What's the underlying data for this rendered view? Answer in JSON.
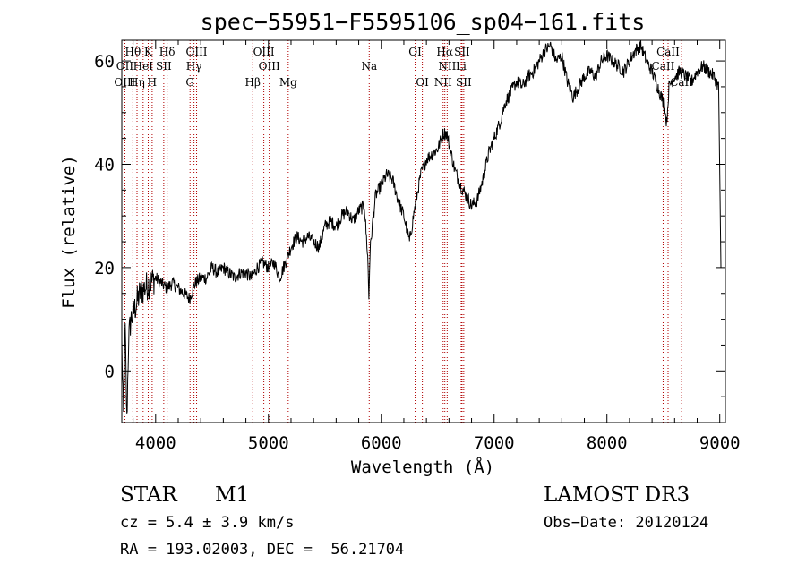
{
  "chart_data": {
    "type": "line",
    "title": "spec−55951−F5595106_sp04−161.fits",
    "xlabel": "Wavelength (Å)",
    "ylabel": "Flux (relative)",
    "xlim": [
      3700,
      9050
    ],
    "ylim": [
      -10,
      64
    ],
    "xticks": [
      4000,
      5000,
      6000,
      7000,
      8000,
      9000
    ],
    "yticks": [
      0,
      20,
      40,
      60
    ],
    "series": [
      {
        "name": "flux",
        "x": [
          3700,
          3715,
          3730,
          3745,
          3760,
          3780,
          3800,
          3830,
          3860,
          3900,
          3950,
          4000,
          4050,
          4100,
          4150,
          4200,
          4250,
          4300,
          4350,
          4400,
          4450,
          4500,
          4550,
          4600,
          4650,
          4700,
          4750,
          4800,
          4850,
          4900,
          4950,
          5000,
          5050,
          5100,
          5150,
          5200,
          5250,
          5300,
          5350,
          5400,
          5450,
          5500,
          5550,
          5600,
          5650,
          5700,
          5750,
          5800,
          5850,
          5880,
          5890,
          5900,
          5920,
          5950,
          6000,
          6050,
          6100,
          6150,
          6200,
          6250,
          6300,
          6350,
          6400,
          6450,
          6500,
          6550,
          6580,
          6600,
          6650,
          6700,
          6750,
          6800,
          6850,
          6900,
          6950,
          7000,
          7050,
          7100,
          7150,
          7200,
          7250,
          7300,
          7350,
          7400,
          7450,
          7500,
          7550,
          7600,
          7650,
          7700,
          7750,
          7800,
          7850,
          7900,
          7950,
          8000,
          8050,
          8100,
          8150,
          8200,
          8250,
          8300,
          8350,
          8400,
          8450,
          8500,
          8530,
          8550,
          8600,
          8650,
          8700,
          8750,
          8800,
          8850,
          8900,
          8950,
          8990,
          9000,
          9010
        ],
        "values": [
          5,
          -9,
          8,
          -10,
          6,
          10,
          11,
          13,
          15,
          16,
          17,
          18,
          17,
          16,
          17,
          16,
          15,
          14,
          17,
          18,
          18,
          20,
          19,
          20,
          19,
          18,
          19,
          19,
          18,
          20,
          21,
          20,
          21,
          18,
          21,
          24,
          26,
          25,
          26,
          25,
          24,
          28,
          29,
          28,
          30,
          31,
          29,
          31,
          32,
          22,
          14,
          23,
          28,
          34,
          36,
          38,
          37,
          33,
          30,
          25,
          32,
          38,
          41,
          42,
          43,
          46,
          46,
          44,
          39,
          36,
          34,
          32,
          33,
          37,
          42,
          45,
          48,
          52,
          54,
          56,
          55,
          57,
          58,
          60,
          62,
          63,
          60,
          61,
          56,
          53,
          55,
          57,
          58,
          57,
          60,
          61,
          60,
          59,
          58,
          60,
          62,
          63,
          60,
          58,
          55,
          52,
          48,
          55,
          57,
          58,
          57,
          56,
          58,
          59,
          58,
          57,
          55,
          38,
          20
        ]
      }
    ],
    "spectral_lines": [
      {
        "name": "Hθ",
        "wavelength": 3798,
        "row": 0
      },
      {
        "name": "K",
        "wavelength": 3934,
        "row": 0
      },
      {
        "name": "Hδ",
        "wavelength": 4102,
        "row": 0
      },
      {
        "name": "OIII",
        "wavelength": 4363,
        "row": 0
      },
      {
        "name": "OIII",
        "wavelength": 4959,
        "row": 0
      },
      {
        "name": "OI",
        "wavelength": 6300,
        "row": 0
      },
      {
        "name": "Hα",
        "wavelength": 6563,
        "row": 0
      },
      {
        "name": "SII",
        "wavelength": 6716,
        "row": 0
      },
      {
        "name": "CaII",
        "wavelength": 8542,
        "row": 0
      },
      {
        "name": "OII",
        "wavelength": 3727,
        "row": 1
      },
      {
        "name": "HeI",
        "wavelength": 3889,
        "row": 1
      },
      {
        "name": "SII",
        "wavelength": 4072,
        "row": 1
      },
      {
        "name": "Hγ",
        "wavelength": 4340,
        "row": 1
      },
      {
        "name": "OIII",
        "wavelength": 5007,
        "row": 1
      },
      {
        "name": "Na",
        "wavelength": 5893,
        "row": 1
      },
      {
        "name": "NII",
        "wavelength": 6584,
        "row": 1
      },
      {
        "name": "Li",
        "wavelength": 6708,
        "row": 1
      },
      {
        "name": "CaII",
        "wavelength": 8498,
        "row": 1
      },
      {
        "name": "OIII",
        "wavelength": 3727,
        "row": 2
      },
      {
        "name": "Hη",
        "wavelength": 3835,
        "row": 2
      },
      {
        "name": "H",
        "wavelength": 3969,
        "row": 2
      },
      {
        "name": "G",
        "wavelength": 4305,
        "row": 2
      },
      {
        "name": "Hβ",
        "wavelength": 4861,
        "row": 2
      },
      {
        "name": "Mg",
        "wavelength": 5175,
        "row": 2
      },
      {
        "name": "OI",
        "wavelength": 6364,
        "row": 2
      },
      {
        "name": "NII",
        "wavelength": 6548,
        "row": 2
      },
      {
        "name": "SII",
        "wavelength": 6731,
        "row": 2
      },
      {
        "name": "CaII",
        "wavelength": 8662,
        "row": 2
      }
    ]
  },
  "info": {
    "object_type": "STAR",
    "subclass": "M1",
    "survey": "LAMOST DR3",
    "cz": "cz = 5.4 ± 3.9 km/s",
    "obs_date": "Obs−Date: 20120124",
    "coords": "RA = 193.02003, DEC =  56.21704"
  }
}
